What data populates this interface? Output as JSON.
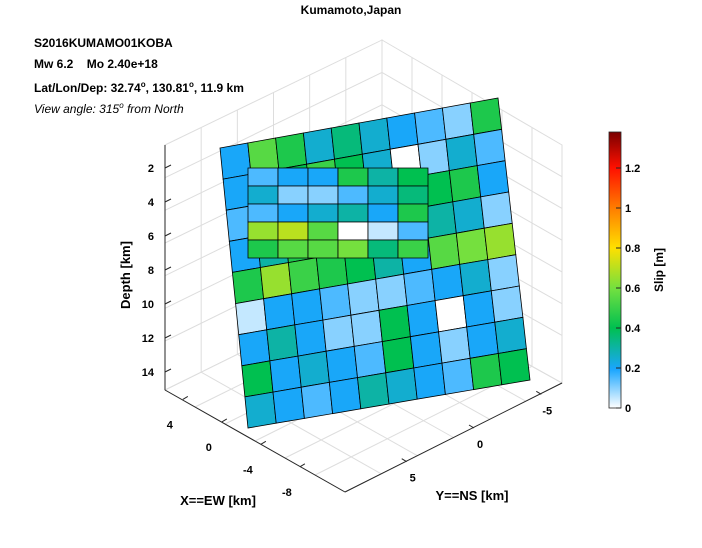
{
  "chart_data": {
    "type": "3d-fault-slip-map",
    "title": "Kumamoto,Japan",
    "event_id": "S2016KUMAMO01KOBA",
    "magnitude_label": "Mw 6.2",
    "moment_label": "Mo 2.40e+18",
    "location_label": "Lat/Lon/Dep: 32.74",
    "lat": "32.74",
    "lon": "130.81",
    "depth": "11.9 km",
    "degree_symbol": "o",
    "view_label_prefix": "View angle: 315",
    "view_label_suffix": " from North",
    "x_axis": {
      "label": "X==EW [km]",
      "ticks": [
        "4",
        "0",
        "-4",
        "-8"
      ]
    },
    "y_axis": {
      "label": "Y==NS [km]",
      "ticks": [
        "5",
        "0",
        "-5"
      ]
    },
    "z_axis": {
      "label": "Depth [km]",
      "ticks": [
        "2",
        "4",
        "6",
        "8",
        "10",
        "12",
        "14"
      ]
    },
    "colorbar": {
      "label": "Slip [m]",
      "ticks": [
        "0",
        "0.2",
        "0.4",
        "0.6",
        "0.8",
        "1",
        "1.2"
      ],
      "range": [
        0,
        1.38
      ]
    },
    "segments": [
      {
        "name": "main-segment",
        "rows": 9,
        "cols": 10,
        "slip": [
          [
            0.2,
            0.55,
            0.45,
            0.25,
            0.35,
            0.25,
            0.2,
            0.15,
            0.1,
            0.45
          ],
          [
            0.2,
            0.35,
            0.4,
            0.5,
            0.4,
            0.25,
            0.0,
            0.1,
            0.25,
            0.15
          ],
          [
            0.15,
            0.2,
            0.2,
            0.2,
            0.2,
            0.15,
            0.35,
            0.4,
            0.45,
            0.2
          ],
          [
            0.2,
            0.3,
            0.45,
            0.5,
            0.45,
            0.4,
            0.15,
            0.3,
            0.25,
            0.1
          ],
          [
            0.45,
            0.65,
            0.5,
            0.45,
            0.4,
            0.3,
            0.2,
            0.55,
            0.6,
            0.65
          ],
          [
            0.05,
            0.2,
            0.2,
            0.15,
            0.1,
            0.1,
            0.15,
            0.2,
            0.25,
            0.1
          ],
          [
            0.2,
            0.3,
            0.2,
            0.1,
            0.1,
            0.4,
            0.2,
            0.0,
            0.2,
            0.1
          ],
          [
            0.4,
            0.2,
            0.25,
            0.2,
            0.15,
            0.4,
            0.2,
            0.1,
            0.2,
            0.25
          ],
          [
            0.25,
            0.2,
            0.15,
            0.2,
            0.3,
            0.25,
            0.2,
            0.15,
            0.45,
            0.4
          ]
        ]
      },
      {
        "name": "inner-segment",
        "rows": 5,
        "cols": 6,
        "slip": [
          [
            0.15,
            0.2,
            0.2,
            0.45,
            0.3,
            0.4
          ],
          [
            0.25,
            0.1,
            0.1,
            0.15,
            0.25,
            0.35
          ],
          [
            0.15,
            0.2,
            0.25,
            0.3,
            0.2,
            0.45
          ],
          [
            0.65,
            0.7,
            0.55,
            0.0,
            0.05,
            0.15
          ],
          [
            0.45,
            0.55,
            0.55,
            0.6,
            0.35,
            0.5
          ]
        ]
      }
    ]
  }
}
